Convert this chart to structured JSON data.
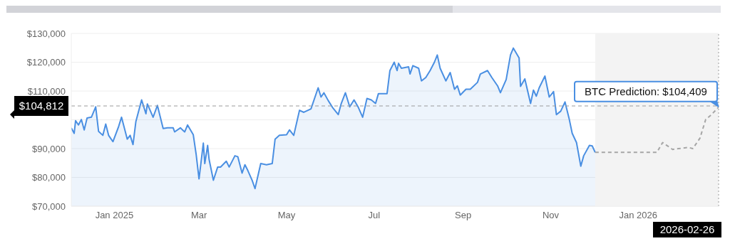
{
  "chart_data": {
    "type": "area",
    "grid": "y",
    "xlim": [
      "2024-12-02",
      "2026-02-26"
    ],
    "xticks": [
      {
        "value": "2025-01-01",
        "label": "Jan 2025"
      },
      {
        "value": "2025-03-01",
        "label": "Mar"
      },
      {
        "value": "2025-05-01",
        "label": "May"
      },
      {
        "value": "2025-07-01",
        "label": "Jul"
      },
      {
        "value": "2025-09-01",
        "label": "Sep"
      },
      {
        "value": "2025-11-01",
        "label": "Nov"
      },
      {
        "value": "2026-01-01",
        "label": "Jan 2026"
      }
    ],
    "ylim": [
      70000,
      130000
    ],
    "yticks": [
      {
        "value": 70000,
        "label": "$70,000"
      },
      {
        "value": 80000,
        "label": "$80,000"
      },
      {
        "value": 90000,
        "label": "$90,000"
      },
      {
        "value": 100000,
        "label": null
      },
      {
        "value": 110000,
        "label": "$110,000"
      },
      {
        "value": 120000,
        "label": "$120,000"
      },
      {
        "value": 130000,
        "label": "$130,000"
      }
    ],
    "series": [
      {
        "color": "#4a8fe2",
        "x": [
          "2024-12-02",
          "2024-12-04",
          "2024-12-05",
          "2024-12-07",
          "2024-12-09",
          "2024-12-11",
          "2024-12-13",
          "2024-12-16",
          "2024-12-19",
          "2024-12-21",
          "2024-12-24",
          "2024-12-26",
          "2024-12-28",
          "2024-12-31",
          "2025-01-04",
          "2025-01-06",
          "2025-01-10",
          "2025-01-12",
          "2025-01-14",
          "2025-01-16",
          "2025-01-20",
          "2025-01-23",
          "2025-01-24",
          "2025-01-28",
          "2025-01-31",
          "2025-02-04",
          "2025-02-07",
          "2025-02-11",
          "2025-02-12",
          "2025-02-16",
          "2025-02-19",
          "2025-02-21",
          "2025-02-25",
          "2025-02-27",
          "2025-03-01",
          "2025-03-04",
          "2025-03-05",
          "2025-03-07",
          "2025-03-08",
          "2025-03-11",
          "2025-03-14",
          "2025-03-16",
          "2025-03-20",
          "2025-03-22",
          "2025-03-26",
          "2025-03-28",
          "2025-03-31",
          "2025-04-02",
          "2025-04-04",
          "2025-04-07",
          "2025-04-09",
          "2025-04-13",
          "2025-04-17",
          "2025-04-21",
          "2025-04-23",
          "2025-04-26",
          "2025-05-01",
          "2025-05-03",
          "2025-05-06",
          "2025-05-10",
          "2025-05-13",
          "2025-05-18",
          "2025-05-23",
          "2025-05-25",
          "2025-05-27",
          "2025-05-30",
          "2025-06-02",
          "2025-06-06",
          "2025-06-08",
          "2025-06-11",
          "2025-06-14",
          "2025-06-17",
          "2025-06-20",
          "2025-06-23",
          "2025-06-26",
          "2025-06-29",
          "2025-07-02",
          "2025-07-04",
          "2025-07-10",
          "2025-07-12",
          "2025-07-15",
          "2025-07-17",
          "2025-07-18",
          "2025-07-20",
          "2025-07-25",
          "2025-07-26",
          "2025-07-28",
          "2025-08-01",
          "2025-08-03",
          "2025-08-06",
          "2025-08-09",
          "2025-08-12",
          "2025-08-14",
          "2025-08-16",
          "2025-08-20",
          "2025-08-23",
          "2025-08-26",
          "2025-08-28",
          "2025-08-30",
          "2025-09-03",
          "2025-09-06",
          "2025-09-11",
          "2025-09-13",
          "2025-09-18",
          "2025-09-21",
          "2025-09-25",
          "2025-09-27",
          "2025-10-01",
          "2025-10-04",
          "2025-10-06",
          "2025-10-10",
          "2025-10-11",
          "2025-10-14",
          "2025-10-18",
          "2025-10-20",
          "2025-10-22",
          "2025-10-24",
          "2025-10-28",
          "2025-10-31",
          "2025-11-03",
          "2025-11-05",
          "2025-11-08",
          "2025-11-11",
          "2025-11-14",
          "2025-11-16",
          "2025-11-19",
          "2025-11-22",
          "2025-11-24",
          "2025-11-28",
          "2025-11-30",
          "2025-12-02"
        ],
        "values": [
          97200,
          95300,
          99700,
          98200,
          100100,
          96500,
          100600,
          100900,
          104500,
          96000,
          94600,
          98500,
          94600,
          92400,
          97700,
          100900,
          93300,
          94600,
          91400,
          99400,
          106900,
          102100,
          105500,
          100900,
          105000,
          97000,
          97200,
          97200,
          95800,
          97200,
          95800,
          98200,
          94800,
          88000,
          79500,
          91900,
          84800,
          91100,
          86300,
          79000,
          83600,
          83600,
          85600,
          83600,
          87500,
          87200,
          81500,
          84400,
          82400,
          79000,
          76100,
          84800,
          84400,
          84800,
          93300,
          94600,
          94800,
          96500,
          94600,
          103300,
          102600,
          103800,
          111100,
          107900,
          109400,
          106700,
          104300,
          101800,
          105500,
          109400,
          104500,
          106900,
          104300,
          100900,
          107400,
          106900,
          105700,
          109100,
          109100,
          117100,
          120000,
          117100,
          119600,
          117900,
          118400,
          115900,
          118800,
          117900,
          113500,
          114700,
          117100,
          120000,
          122500,
          117900,
          113500,
          116400,
          110600,
          111800,
          108600,
          110600,
          110600,
          113000,
          115900,
          117100,
          114700,
          111800,
          109400,
          114000,
          122500,
          124900,
          121500,
          111600,
          114200,
          105700,
          110300,
          108200,
          111100,
          115200,
          107900,
          109800,
          101800,
          103000,
          106200,
          100100,
          95300,
          92100,
          83900,
          87500,
          91100,
          90900,
          88700
        ]
      },
      {
        "type": "line",
        "color": "#a6a6a6",
        "line_style": "dashed",
        "x": [
          "2025-12-02",
          "2026-01-14",
          "2026-01-18",
          "2026-01-25",
          "2026-01-29",
          "2026-02-05",
          "2026-02-08",
          "2026-02-13",
          "2026-02-17",
          "2026-02-21",
          "2026-02-26"
        ],
        "values": [
          88700,
          88700,
          92100,
          89700,
          90000,
          90400,
          90000,
          93600,
          100100,
          101800,
          104409
        ]
      }
    ],
    "bands": [
      {
        "axis": "x",
        "from": "2025-12-02",
        "to": "2026-02-26",
        "color": "#f3f3f3"
      }
    ],
    "ref_lines": [
      {
        "axis": "y",
        "value": 104812,
        "label": "$104,812",
        "line_style": "dashed"
      },
      {
        "axis": "x",
        "value": "2026-02-26",
        "label": "2026-02-26",
        "line_style": "dotted"
      }
    ],
    "annotations": [
      {
        "text": "BTC Prediction: $104,409",
        "x": "2026-02-26",
        "y": 104409
      }
    ]
  }
}
